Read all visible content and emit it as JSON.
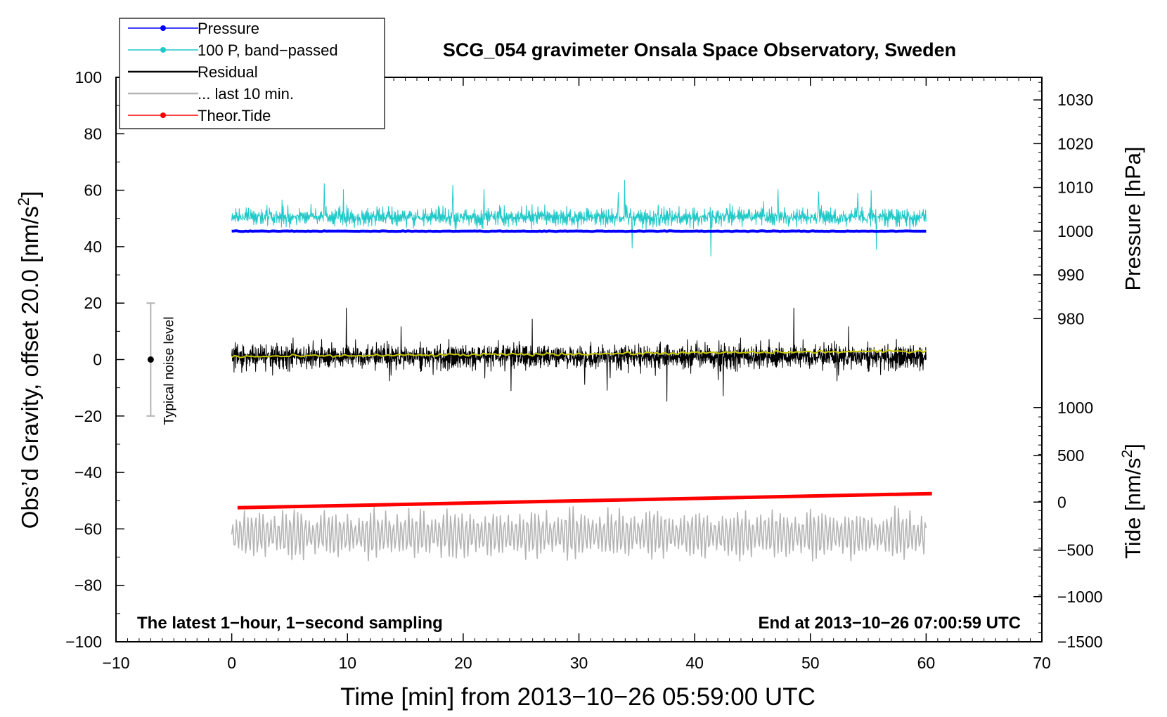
{
  "chart_data": {
    "type": "line",
    "title": "SCG_054 gravimeter Onsala Space Observatory, Sweden",
    "xlabel": "Time [min] from 2013−10−26 05:59:00 UTC",
    "ylabel_left": "Obs’d Gravity, offset 20.0 [nm/s",
    "ylabel_left_unit_sup": "2",
    "ylabel_left_close": "]",
    "ylabel_right_pressure": "Pressure [hPa]",
    "ylabel_right_tide": "Tide [nm/s",
    "ylabel_right_tide_sup": "2",
    "ylabel_right_tide_close": "]",
    "xlim": [
      -10,
      70
    ],
    "ylim": [
      -100,
      100
    ],
    "x_ticks": [
      "−10",
      "0",
      "10",
      "20",
      "30",
      "40",
      "50",
      "60",
      "70"
    ],
    "x_tick_values": [
      -10,
      0,
      10,
      20,
      30,
      40,
      50,
      60,
      70
    ],
    "y_ticks": [
      "100",
      "80",
      "60",
      "40",
      "20",
      "0",
      "−20",
      "−40",
      "−60",
      "−80",
      "−100"
    ],
    "y_tick_values": [
      100,
      80,
      60,
      40,
      20,
      0,
      -20,
      -40,
      -60,
      -80,
      -100
    ],
    "pressure_axis": {
      "ticks": [
        "1030",
        "1020",
        "1010",
        "1000",
        "990",
        "980"
      ],
      "tick_values": [
        1030,
        1020,
        1010,
        1000,
        990,
        980
      ],
      "left_axis_equivalent": [
        92,
        76.5,
        61,
        45.5,
        30,
        14.5
      ]
    },
    "tide_axis": {
      "ticks": [
        "1000",
        "500",
        "0",
        "−500",
        "−1000",
        "−1500"
      ],
      "tick_values": [
        1000,
        500,
        0,
        -500,
        -1000,
        -1500
      ],
      "left_axis_equivalent": [
        -17,
        -34,
        -50.5,
        -67.5,
        -84,
        -100
      ]
    },
    "legend": {
      "position": "top-left",
      "entries": [
        {
          "label": "Pressure",
          "color": "#0000ff",
          "marker": true
        },
        {
          "label": "100 P, band−passed",
          "color": "#20c8c8",
          "marker": true
        },
        {
          "label": "Residual",
          "color": "#000000",
          "marker": false
        },
        {
          "label": "... last 10 min.",
          "color": "#b4b4b4",
          "marker": false
        },
        {
          "label": "Theor.Tide",
          "color": "#ff0000",
          "marker": true
        }
      ]
    },
    "annotations": {
      "bottom_left": "The latest 1−hour, 1−second sampling",
      "bottom_right": "End at 2013−10−26 07:00:59 UTC",
      "noise_label": "Typical noise level",
      "noise_bar": {
        "x": -7,
        "center": 0,
        "half_range": 20
      }
    },
    "series": [
      {
        "name": "Pressure",
        "color": "#0000ff",
        "x_range": [
          0,
          60
        ],
        "level": 45.5,
        "amplitude": 0.4
      },
      {
        "name": "100 P, band−passed",
        "color": "#20c8c8",
        "x_range": [
          0,
          60
        ],
        "level": 50.5,
        "amplitude": 9,
        "max": 64,
        "min": 34
      },
      {
        "name": "Residual",
        "color": "#000000",
        "x_range": [
          0,
          60
        ],
        "level": 1,
        "amplitude": 8,
        "max": 24,
        "min": -21
      },
      {
        "name": "Residual smoothed",
        "color": "#c8c800",
        "x_range": [
          0,
          60
        ],
        "start": 1,
        "end": 3
      },
      {
        "name": "... last 10 min.",
        "color": "#b4b4b4",
        "x_range": [
          0,
          60
        ],
        "level": -62,
        "amplitude": 8,
        "max": -43,
        "min": -79
      },
      {
        "name": "Theor.Tide",
        "color": "#ff0000",
        "x": [
          0.5,
          60.5
        ],
        "y": [
          -52.5,
          -47.5
        ]
      }
    ]
  }
}
